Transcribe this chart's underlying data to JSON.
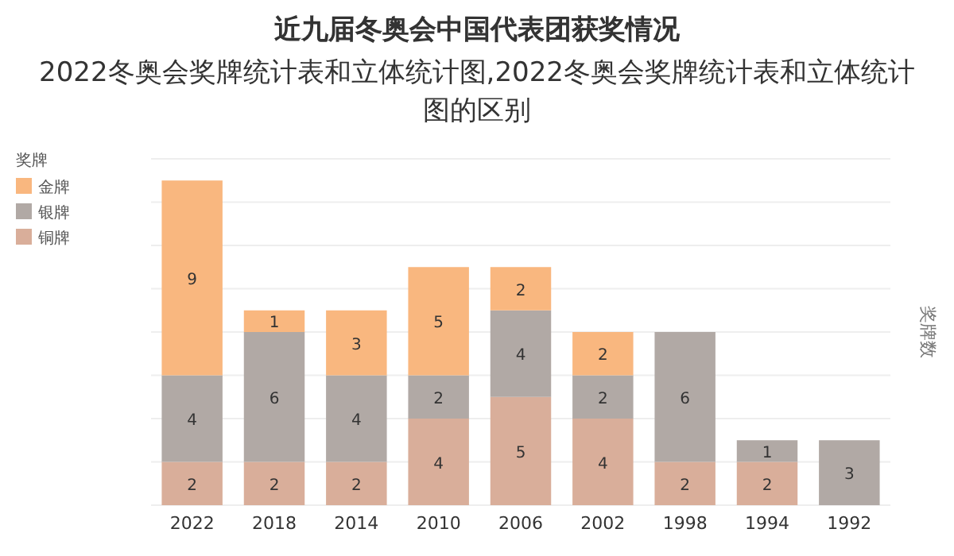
{
  "chart_data": {
    "type": "bar",
    "stacked": true,
    "title": "近九届冬奥会中国代表团获奖情况",
    "subtitle": "2022冬奥会奖牌统计表和立体统计图,2022冬奥会奖牌统计表和立体统计图的区别",
    "ylabel": "奖牌数",
    "legend_title": "奖牌",
    "legend": "top left",
    "grid": "y",
    "tick_labels": "x",
    "categories": [
      "2022",
      "2018",
      "2014",
      "2010",
      "2006",
      "2002",
      "1998",
      "1994",
      "1992"
    ],
    "ylim": [
      0,
      16
    ],
    "yticks": [
      {
        "value": 0,
        "label": null
      },
      {
        "value": 2,
        "label": null
      },
      {
        "value": 4,
        "label": null
      },
      {
        "value": 6,
        "label": null
      },
      {
        "value": 8,
        "label": null
      },
      {
        "value": 10,
        "label": null
      },
      {
        "value": 12,
        "label": null
      },
      {
        "value": 14,
        "label": null
      },
      {
        "value": 16,
        "label": null
      }
    ],
    "series": [
      {
        "name": "铜牌",
        "color": "#d9ae9a",
        "values": [
          2,
          2,
          2,
          4,
          5,
          4,
          2,
          2,
          0
        ],
        "value_labels": [
          "2",
          "2",
          "2",
          "4",
          "5",
          "4",
          "2",
          "2",
          null
        ]
      },
      {
        "name": "银牌",
        "color": "#b1a9a5",
        "values": [
          4,
          6,
          4,
          2,
          4,
          2,
          6,
          1,
          3
        ],
        "value_labels": [
          "4",
          "6",
          "4",
          "2",
          "4",
          "2",
          "6",
          "1",
          "3"
        ]
      },
      {
        "name": "金牌",
        "color": "#f9b77f",
        "values": [
          9,
          1,
          3,
          5,
          2,
          2,
          0,
          0,
          0
        ],
        "value_labels": [
          "9",
          "1",
          "3",
          "5",
          "2",
          "2",
          null,
          null,
          null
        ]
      }
    ]
  }
}
